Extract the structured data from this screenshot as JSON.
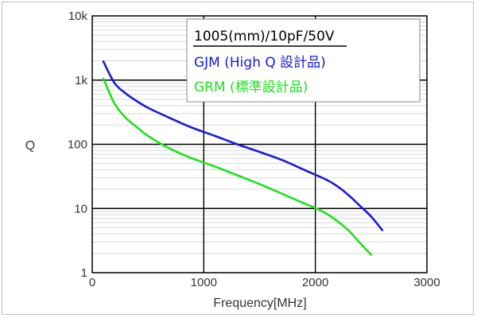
{
  "chart_data": {
    "type": "line",
    "title": "1005(mm)/10pF/50V",
    "xlabel": "Frequency[MHz]",
    "ylabel": "Q",
    "xlim": [
      0,
      3000
    ],
    "ylim": [
      1,
      10000
    ],
    "yscale": "log",
    "grid": true,
    "legend_position": "top-right",
    "x_ticks": [
      "0",
      "1000",
      "2000",
      "3000"
    ],
    "y_ticks": [
      "1",
      "10",
      "100",
      "1k",
      "10k"
    ],
    "series": [
      {
        "name": "GJM (High Q 設計品)",
        "color": "#1a1ad6",
        "points": [
          [
            100,
            1950
          ],
          [
            200,
            900
          ],
          [
            300,
            620
          ],
          [
            400,
            470
          ],
          [
            500,
            370
          ],
          [
            700,
            255
          ],
          [
            900,
            180
          ],
          [
            1100,
            135
          ],
          [
            1300,
            100
          ],
          [
            1500,
            76
          ],
          [
            1700,
            57
          ],
          [
            1900,
            40
          ],
          [
            2100,
            28
          ],
          [
            2200,
            22
          ],
          [
            2300,
            16
          ],
          [
            2400,
            11
          ],
          [
            2500,
            7.5
          ],
          [
            2600,
            4.6
          ]
        ]
      },
      {
        "name": "GRM (標準設計品)",
        "color": "#1ee21e",
        "points": [
          [
            100,
            1050
          ],
          [
            200,
            430
          ],
          [
            300,
            260
          ],
          [
            400,
            185
          ],
          [
            500,
            135
          ],
          [
            700,
            85
          ],
          [
            900,
            60
          ],
          [
            1100,
            45
          ],
          [
            1300,
            33
          ],
          [
            1500,
            24
          ],
          [
            1700,
            17
          ],
          [
            1900,
            12
          ],
          [
            2000,
            10.2
          ],
          [
            2100,
            8.3
          ],
          [
            2200,
            6.3
          ],
          [
            2300,
            4.5
          ],
          [
            2400,
            2.9
          ],
          [
            2500,
            1.9
          ]
        ]
      }
    ]
  }
}
